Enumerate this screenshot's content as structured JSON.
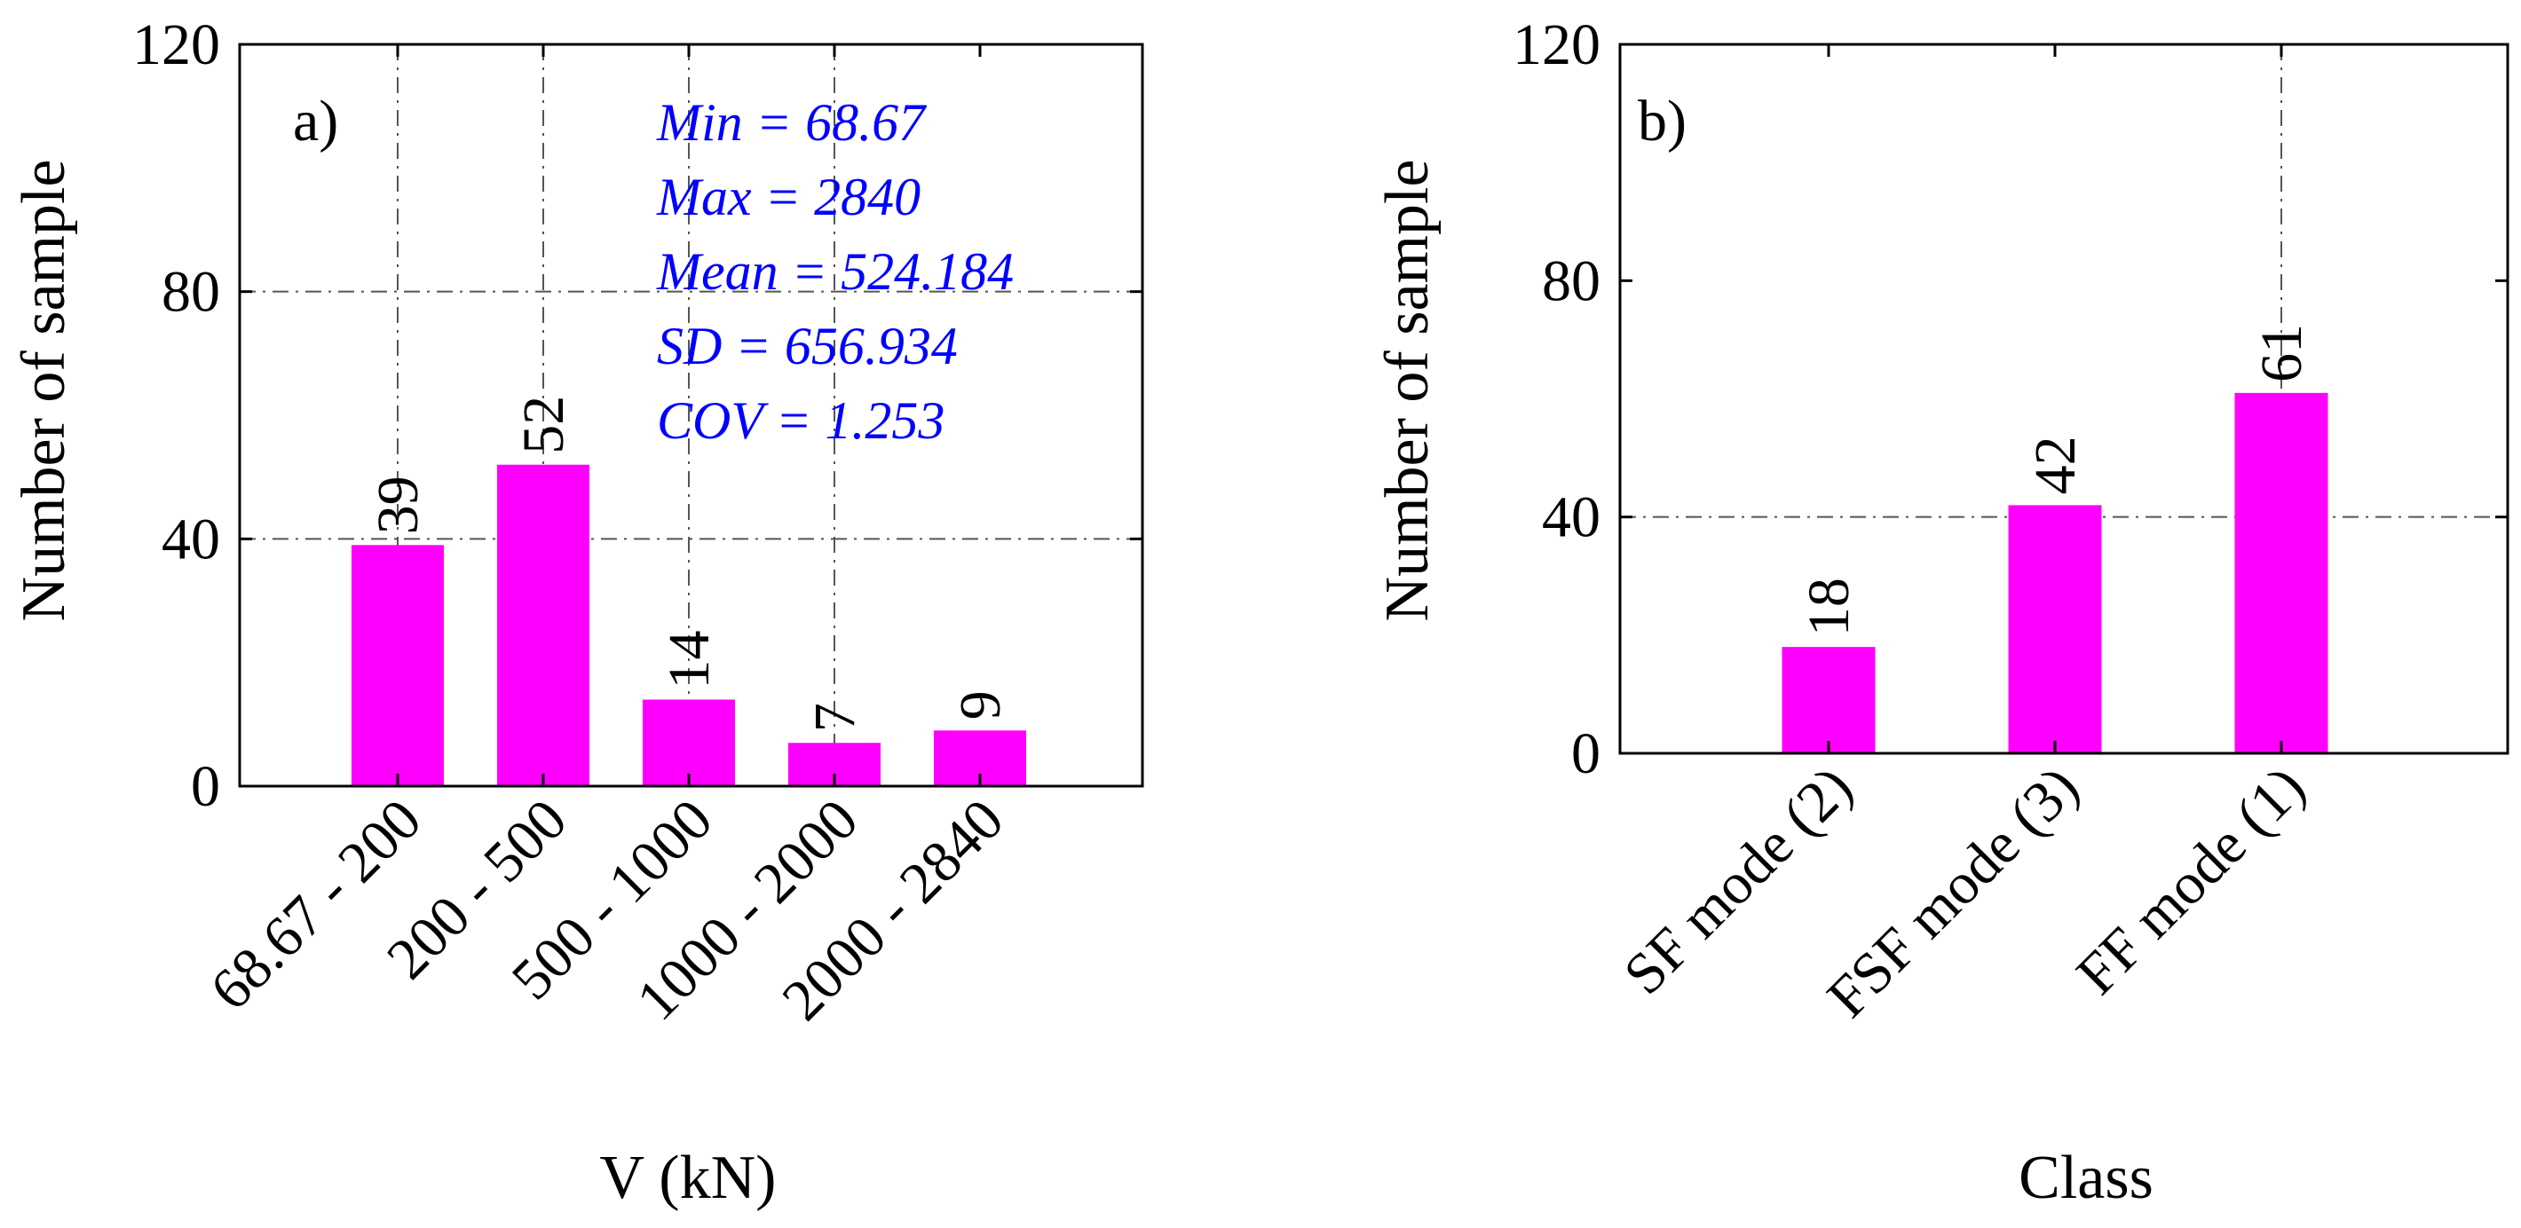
{
  "colors": {
    "bar": "#FF00FF",
    "stats_text": "#0000FF",
    "axis": "#000000"
  },
  "chart_data": [
    {
      "type": "bar",
      "panel_label": "a)",
      "categories": [
        "68.67 - 200",
        "200 - 500",
        "500 - 1000",
        "1000 - 2000",
        "2000 - 2840"
      ],
      "values": [
        39,
        52,
        14,
        7,
        9
      ],
      "data_labels": [
        "39",
        "52",
        "14",
        "7",
        "9"
      ],
      "xlabel": "V (kN)",
      "ylabel": "Number of sample",
      "ylim": [
        0,
        120
      ],
      "yticks": [
        "0",
        "40",
        "80",
        "120"
      ],
      "grid": true,
      "stats": [
        "Min = 68.67",
        "Max = 2840",
        "Mean = 524.184",
        "SD = 656.934",
        "COV = 1.253"
      ]
    },
    {
      "type": "bar",
      "panel_label": "b)",
      "categories": [
        "SF mode (2)",
        "FSF mode (3)",
        "FF mode (1)"
      ],
      "values": [
        18,
        42,
        61
      ],
      "data_labels": [
        "18",
        "42",
        "61"
      ],
      "xlabel": "Class",
      "ylabel": "Number of sample",
      "ylim": [
        0,
        120
      ],
      "yticks": [
        "0",
        "40",
        "80",
        "120"
      ],
      "grid": true
    }
  ]
}
